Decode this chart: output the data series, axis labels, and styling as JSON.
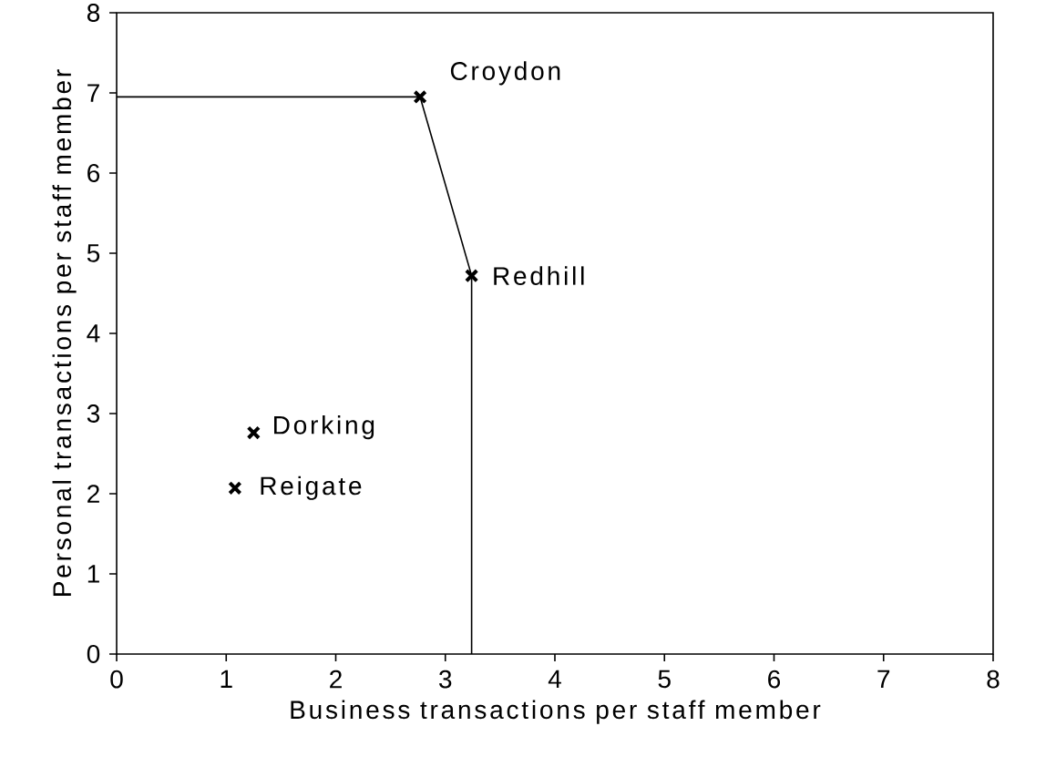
{
  "chart_data": {
    "type": "scatter",
    "xlabel": "Business transactions per staff member",
    "ylabel": "Personal transactions per staff member",
    "xlim": [
      0,
      8
    ],
    "ylim": [
      0,
      8
    ],
    "xticks": [
      0,
      1,
      2,
      3,
      4,
      5,
      6,
      7,
      8
    ],
    "yticks": [
      0,
      1,
      2,
      3,
      4,
      5,
      6,
      7,
      8
    ],
    "series": [
      {
        "type": "line",
        "color": "#000000",
        "marker": "none",
        "x": [
          0,
          2.77,
          3.24,
          3.24
        ],
        "values": [
          6.95,
          6.95,
          4.72,
          0
        ]
      },
      {
        "color": "#000000",
        "marker": "cross",
        "x": [
          2.77,
          3.24,
          1.25,
          1.08
        ],
        "values": [
          6.95,
          4.72,
          2.76,
          2.07
        ]
      }
    ],
    "annotations": [
      {
        "text": "Croydon",
        "x": 2.77,
        "y": 6.95
      },
      {
        "text": "Redhill",
        "x": 3.24,
        "y": 4.72
      },
      {
        "text": "Dorking",
        "x": 1.25,
        "y": 2.76
      },
      {
        "text": "Reigate",
        "x": 1.08,
        "y": 2.07
      }
    ]
  }
}
